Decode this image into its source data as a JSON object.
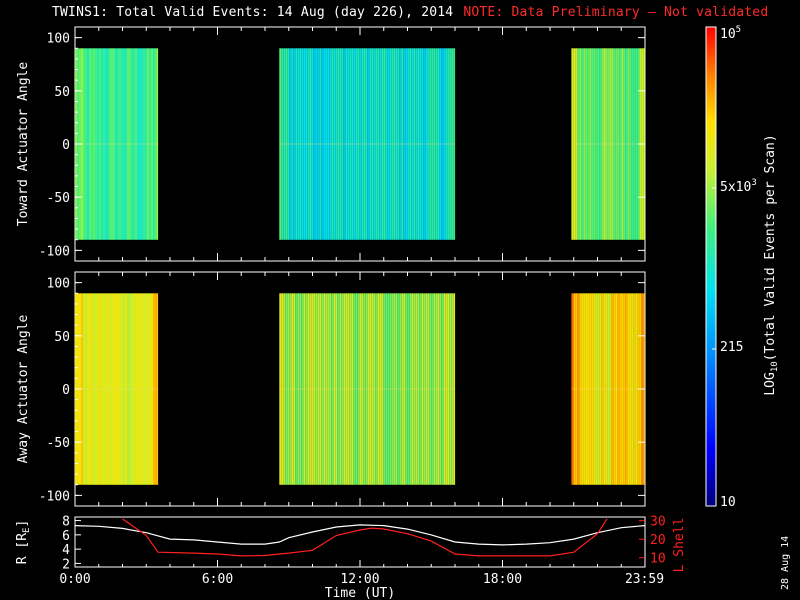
{
  "title": {
    "main": "TWINS1: Total Valid Events: 14 Aug (day 226), 2014",
    "note": "NOTE: Data Preliminary — Not validated"
  },
  "colorbar": {
    "label": "LOG10(Total Valid Events per Scan)",
    "ticks": [
      "10",
      "215",
      "5x10^3",
      "10^5"
    ],
    "range": [
      10,
      100000
    ],
    "palette": "blue-cyan-green-yellow-orange-red"
  },
  "date_stamp": "28 Aug 14",
  "chart_data": [
    {
      "type": "heatmap",
      "name": "toward",
      "ylabel": "Toward Actuator Angle",
      "ylim": [
        -110,
        110
      ],
      "yticks": [
        "100",
        "50",
        "0",
        "-50",
        "-100"
      ],
      "xlim": [
        0,
        24
      ],
      "data_blocks": [
        {
          "t_start": 0.0,
          "t_end": 3.5,
          "angle_range": [
            -90,
            90
          ],
          "level": 0.55
        },
        {
          "t_start": 8.6,
          "t_end": 16.0,
          "angle_range": [
            -90,
            90
          ],
          "level": 0.48
        },
        {
          "t_start": 20.9,
          "t_end": 23.99,
          "angle_range": [
            -90,
            90
          ],
          "level": 0.62
        }
      ]
    },
    {
      "type": "heatmap",
      "name": "away",
      "ylabel": "Away Actuator Angle",
      "ylim": [
        -110,
        110
      ],
      "yticks": [
        "100",
        "50",
        "0",
        "-50",
        "-100"
      ],
      "xlim": [
        0,
        24
      ],
      "data_blocks": [
        {
          "t_start": 0.0,
          "t_end": 3.5,
          "angle_range": [
            -90,
            90
          ],
          "level": 0.74
        },
        {
          "t_start": 8.6,
          "t_end": 16.0,
          "angle_range": [
            -90,
            90
          ],
          "level": 0.66
        },
        {
          "t_start": 20.9,
          "t_end": 23.99,
          "angle_range": [
            -90,
            90
          ],
          "level": 0.78
        }
      ]
    },
    {
      "type": "line",
      "name": "orbit",
      "xlabel": "Time (UT)",
      "xticks": [
        "0:00",
        "6:00",
        "12:00",
        "18:00",
        "23:59"
      ],
      "xtick_hours": [
        0,
        6,
        12,
        18,
        23.98
      ],
      "xlim": [
        0,
        24
      ],
      "ylabel_left": "R [RE]",
      "ylim_left": [
        1.5,
        8.5
      ],
      "yticks_left": [
        "8",
        "6",
        "4",
        "2"
      ],
      "ylabel_right": "L Shell",
      "ylim_right": [
        5,
        32
      ],
      "yticks_right": [
        "30",
        "20",
        "10"
      ],
      "series": [
        {
          "name": "R [RE]",
          "color": "#ffffff",
          "x": [
            0,
            1,
            2,
            3,
            4,
            5,
            6,
            7,
            8,
            8.6,
            9,
            10,
            11,
            12,
            13,
            14,
            15,
            16,
            17,
            18,
            19,
            20,
            21,
            22,
            23,
            23.98
          ],
          "y": [
            7.3,
            7.2,
            6.9,
            6.3,
            5.4,
            5.3,
            5.0,
            4.7,
            4.7,
            5.0,
            5.6,
            6.4,
            7.1,
            7.4,
            7.3,
            6.8,
            6.0,
            5.0,
            4.7,
            4.6,
            4.7,
            4.9,
            5.4,
            6.3,
            7.0,
            7.3
          ]
        },
        {
          "name": "L Shell",
          "color": "#ff2020",
          "x": [
            2.0,
            3.0,
            3.5,
            5.0,
            6.0,
            7.0,
            8.0,
            8.6,
            9.0,
            10.0,
            11.0,
            12.0,
            12.5,
            13.0,
            14.0,
            15.0,
            16.0,
            17.0,
            18.0,
            19.0,
            20.0,
            21.0,
            22.0,
            22.4
          ],
          "y": [
            31,
            22,
            13,
            12.5,
            12,
            11,
            11.2,
            12,
            12.5,
            14,
            22,
            25,
            26,
            25.5,
            23,
            19,
            12,
            11,
            11,
            11,
            11,
            13,
            23,
            31
          ]
        }
      ]
    }
  ]
}
